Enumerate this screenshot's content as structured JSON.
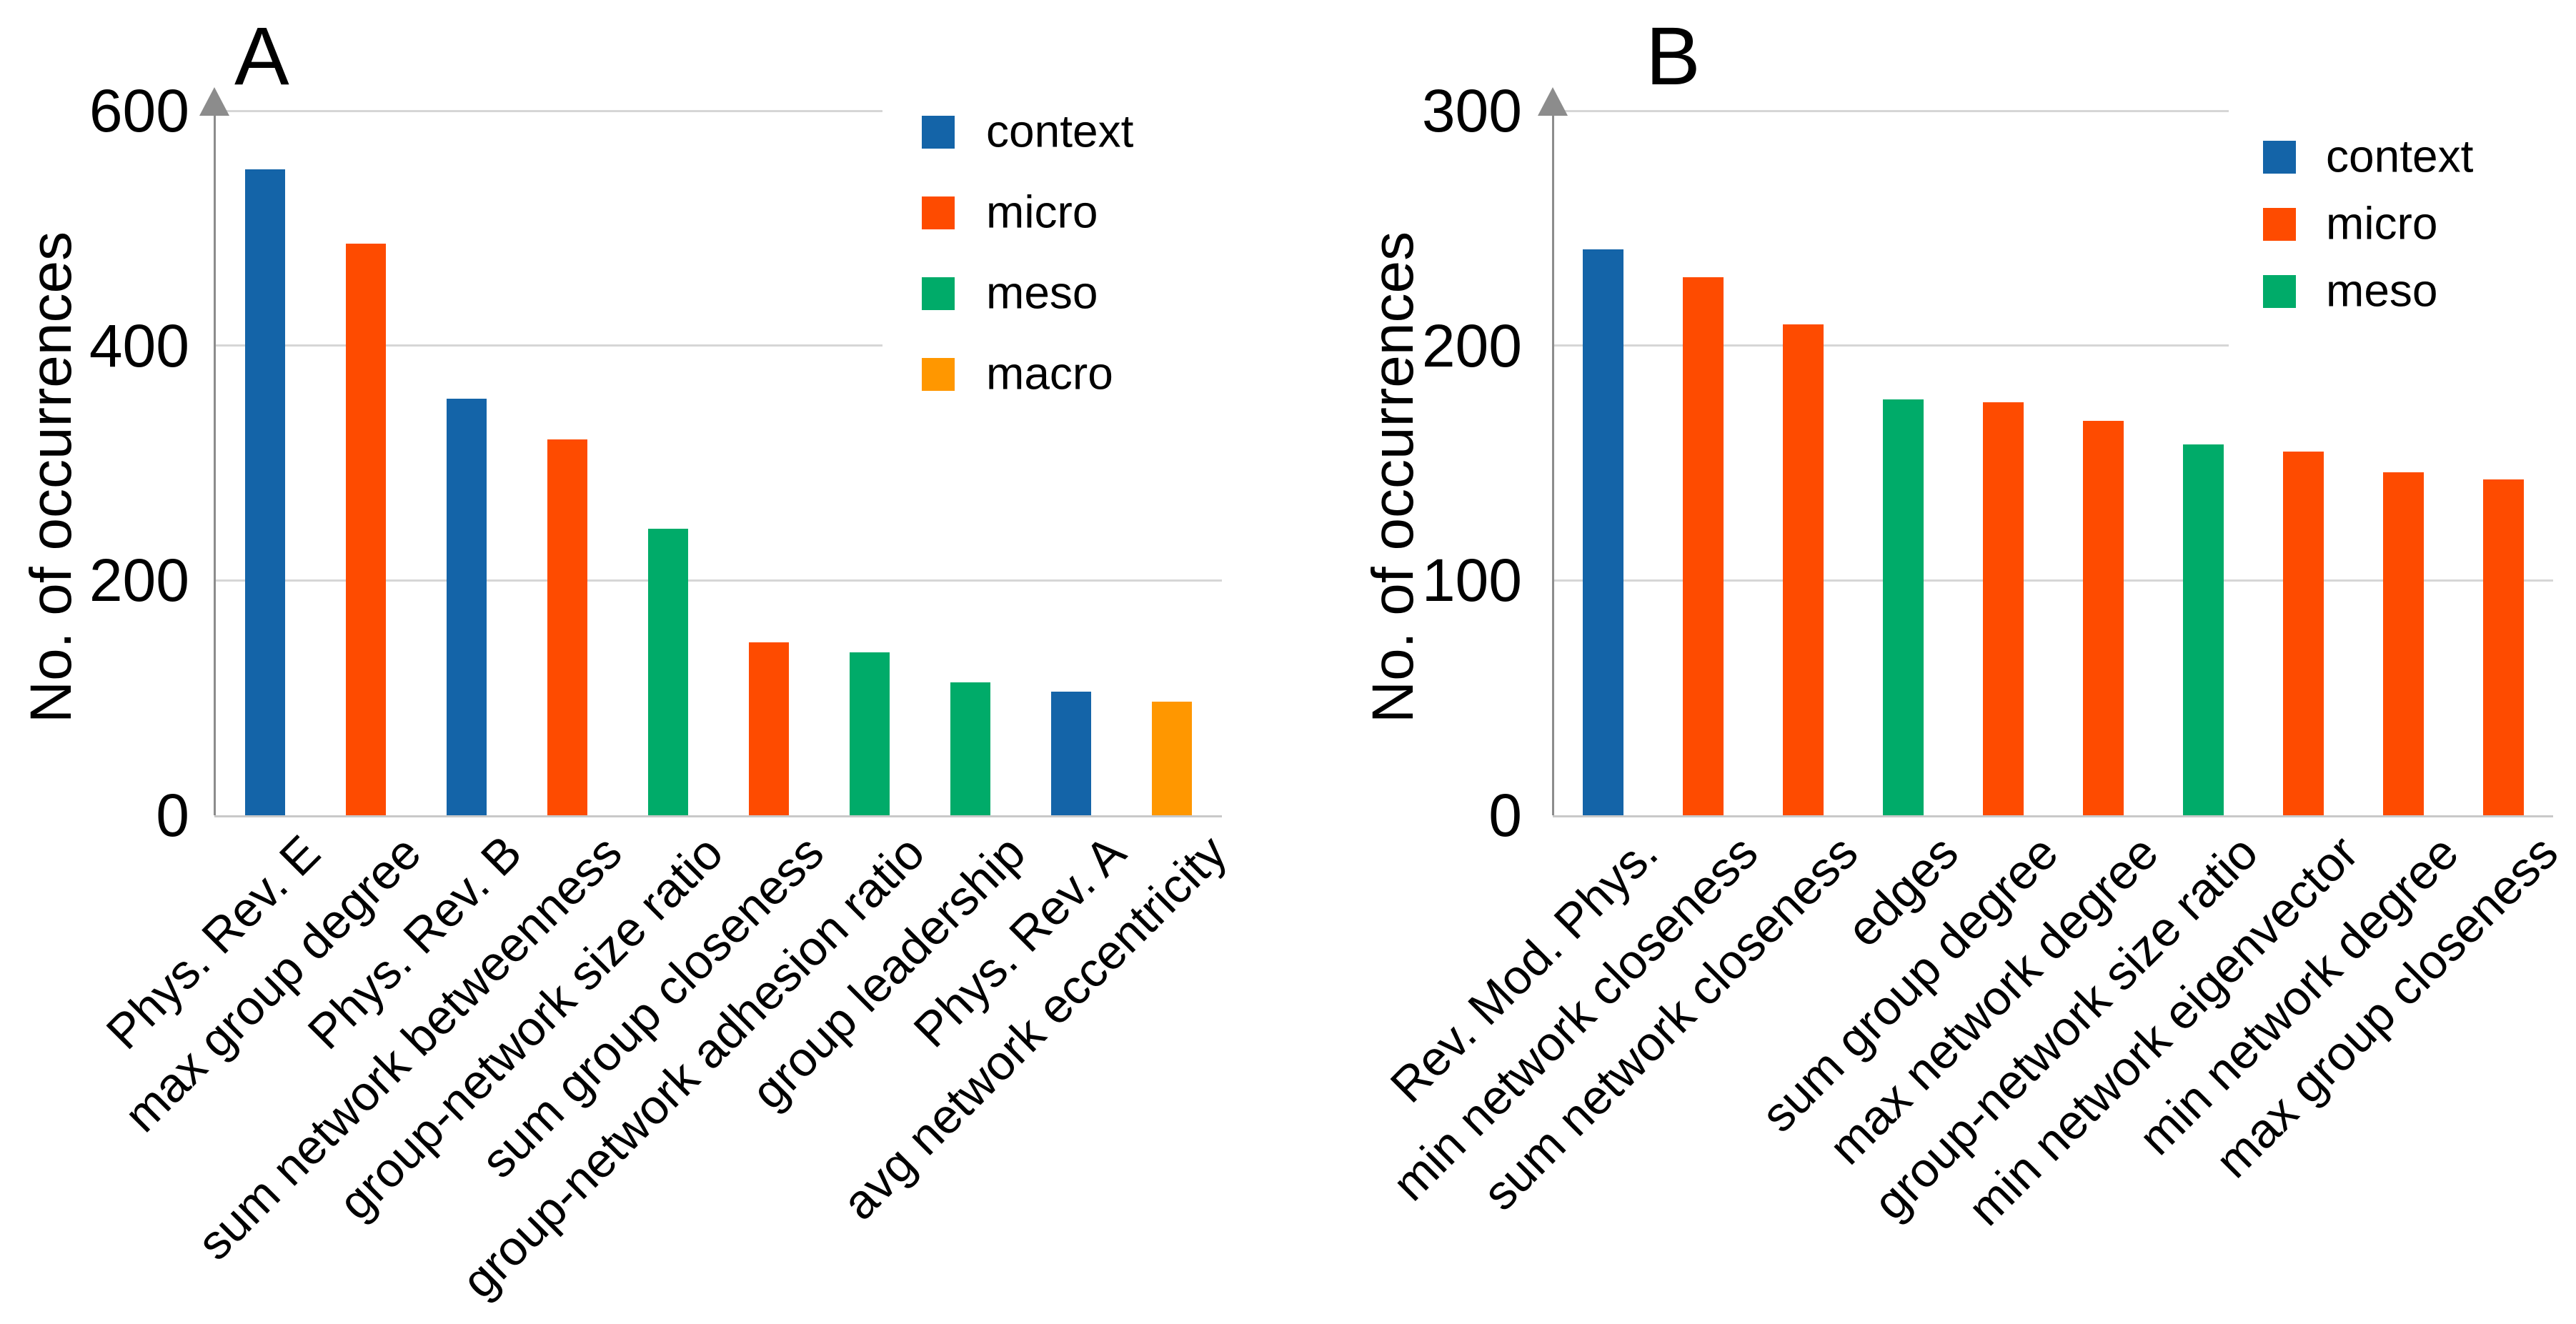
{
  "page": {
    "background": "#FFFFFF"
  },
  "colors": {
    "context": "#1464A8",
    "micro": "#FE4B00",
    "meso": "#00AB69",
    "macro": "#FF9700",
    "gridline": "#D6D6D6",
    "axis_arrow": "#8C8C8C",
    "baseline": "#C9C9C9",
    "text": "#000000"
  },
  "chart_data": [
    {
      "type": "bar",
      "panel_label": "A",
      "title": "A",
      "ylabel": "No. of occurrences",
      "xlabel": "",
      "ylim": [
        0,
        600
      ],
      "yticks": [
        0,
        200,
        400,
        600
      ],
      "short_gridlines": [
        400,
        600
      ],
      "grid": true,
      "legend_position": "upper-right-inside",
      "legend": [
        "context",
        "micro",
        "meso",
        "macro"
      ],
      "categories": [
        "Phys. Rev. E",
        "max group degree",
        "Phys. Rev. B",
        "sum network betweenness",
        "group-network size ratio",
        "sum group closeness",
        "group-network adhesion ratio",
        "group leadership",
        "Phys. Rev. A",
        "avg network eccentricity"
      ],
      "values": [
        550,
        487,
        355,
        320,
        244,
        147,
        139,
        113,
        105,
        97
      ],
      "bar_categories": [
        "context",
        "micro",
        "context",
        "micro",
        "meso",
        "micro",
        "meso",
        "meso",
        "context",
        "macro"
      ]
    },
    {
      "type": "bar",
      "panel_label": "B",
      "title": "B",
      "ylabel": "No. of occurrences",
      "xlabel": "",
      "ylim": [
        0,
        300
      ],
      "yticks": [
        0,
        100,
        200,
        300
      ],
      "short_gridlines": [
        200,
        300
      ],
      "grid": true,
      "legend_position": "upper-right-inside",
      "legend": [
        "context",
        "micro",
        "meso"
      ],
      "categories": [
        "Rev. Mod. Phys.",
        "min network closeness",
        "sum network closeness",
        "edges",
        "sum group degree",
        "max network degree",
        "group-network size ratio",
        "min network eigenvector",
        "min network degree",
        "max group closeness"
      ],
      "values": [
        241,
        229,
        209,
        177,
        176,
        168,
        158,
        155,
        146,
        143
      ],
      "bar_categories": [
        "context",
        "micro",
        "micro",
        "meso",
        "micro",
        "micro",
        "meso",
        "micro",
        "micro",
        "micro"
      ]
    }
  ]
}
